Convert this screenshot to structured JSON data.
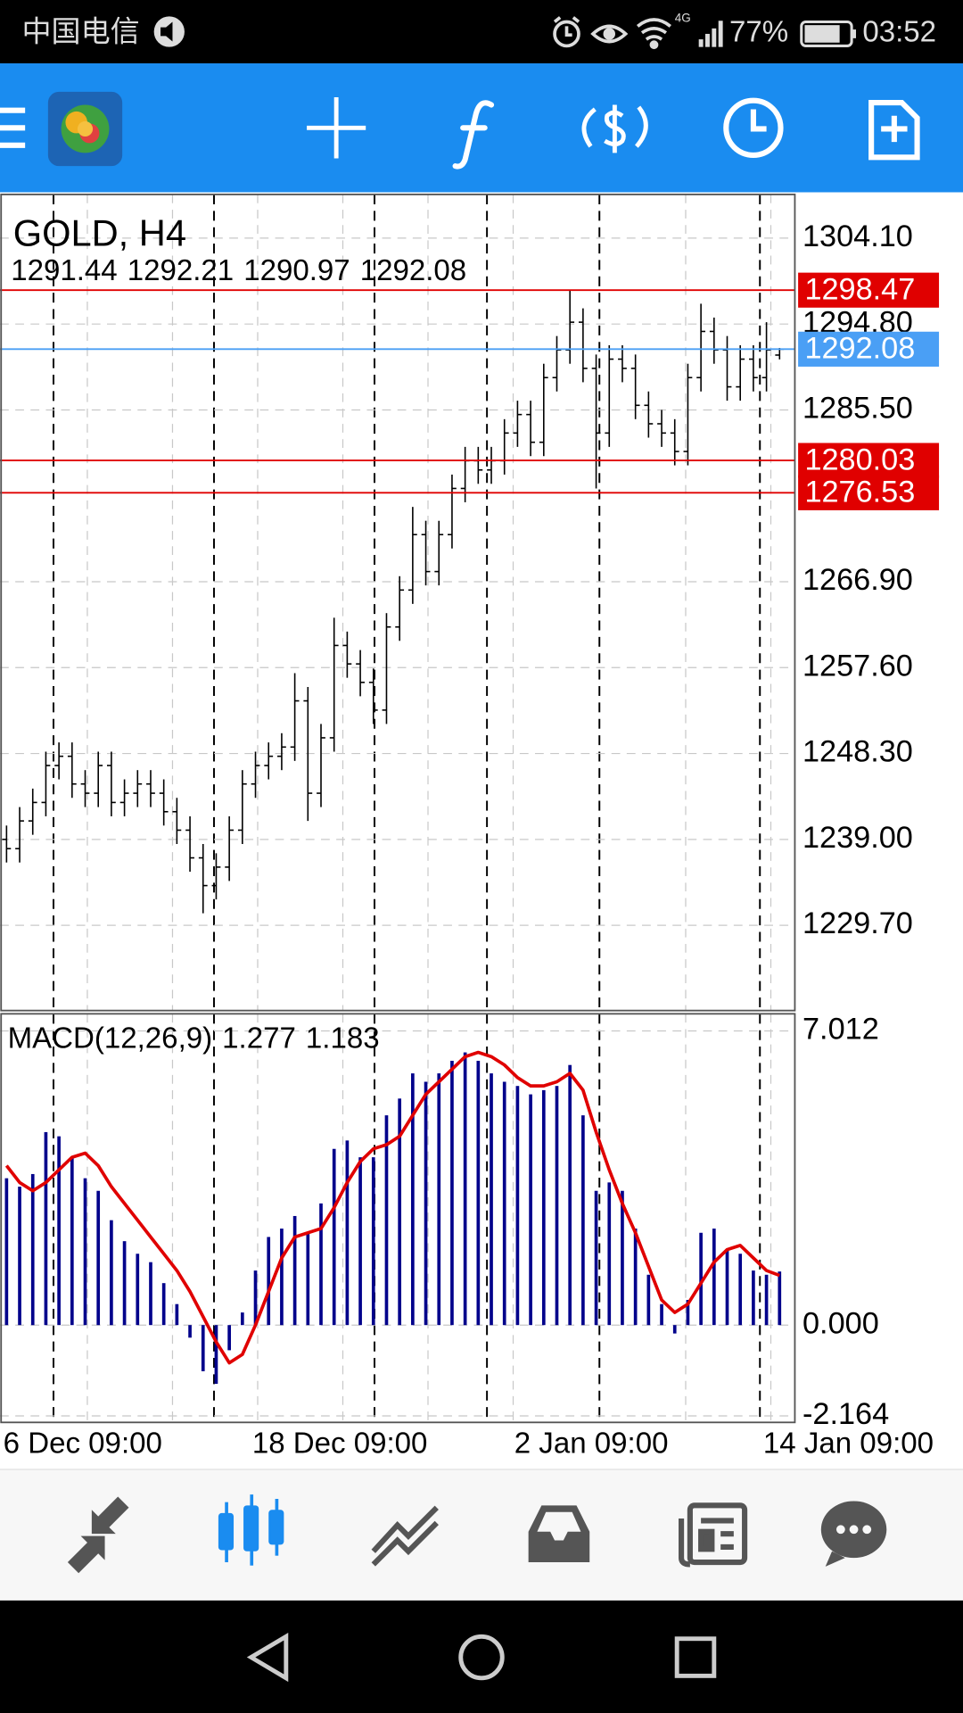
{
  "status_bar": {
    "carrier": "中国电信",
    "network": "4G",
    "battery": "77%",
    "time": "03:52"
  },
  "chart_data": [
    {
      "type": "ohlc",
      "title": "GOLD, H4",
      "color": "#000000",
      "grid": true,
      "categories": [
        "6 Dec 09:00",
        null,
        null,
        null,
        null,
        null,
        null,
        null,
        null,
        null,
        null,
        null,
        null,
        null,
        null,
        null,
        null,
        null,
        null,
        "18 Dec 09:00",
        null,
        null,
        null,
        null,
        null,
        null,
        null,
        null,
        null,
        null,
        null,
        null,
        null,
        null,
        null,
        null,
        null,
        null,
        null,
        "2 Jan 09:00",
        null,
        null,
        null,
        null,
        null,
        null,
        null,
        null,
        null,
        null,
        null,
        null,
        null,
        null,
        null,
        null,
        null,
        null,
        "14 Jan 09:00",
        null
      ],
      "open": [
        1239,
        1238,
        1241,
        1243,
        1247,
        1248,
        1245,
        1244,
        1247,
        1243,
        1244,
        1245,
        1244,
        1242,
        1240,
        1237,
        1234,
        1236,
        1240,
        1245,
        1247,
        1248,
        1249,
        1254,
        1244,
        1250,
        1260,
        1258,
        1256,
        1253,
        1262,
        1266,
        1272,
        1268,
        1272,
        1277,
        1280,
        1279,
        1280,
        1283,
        1285,
        1282,
        1289,
        1292,
        1295,
        1290,
        1283,
        1291,
        1290,
        1286,
        1284,
        1283,
        1281,
        1289,
        1294,
        1292,
        1288,
        1291,
        1289,
        1291.44
      ],
      "high": [
        1240.5,
        1242.5,
        1244.5,
        1248.5,
        1249.5,
        1249.5,
        1246.5,
        1248.5,
        1248.5,
        1245.5,
        1246.5,
        1246.5,
        1245.5,
        1243.5,
        1241.5,
        1238.5,
        1237.5,
        1241.5,
        1246.5,
        1248.5,
        1249.5,
        1250.5,
        1257,
        1255.5,
        1251.5,
        1263,
        1261.5,
        1259.5,
        1257.5,
        1263.5,
        1267.5,
        1275,
        1273.5,
        1273.5,
        1278.5,
        1281.5,
        1281.5,
        1281.5,
        1284.5,
        1286.5,
        1286.5,
        1290.5,
        1293.5,
        1298.5,
        1296.5,
        1291.5,
        1292.5,
        1292.5,
        1291.5,
        1287.5,
        1285.5,
        1284.5,
        1290.5,
        1297,
        1295.5,
        1293.5,
        1292.5,
        1292.5,
        1295,
        1292.21
      ],
      "low": [
        1236.5,
        1236.5,
        1239.5,
        1241.5,
        1245.5,
        1243.5,
        1242.5,
        1242.5,
        1241.5,
        1241.5,
        1242.5,
        1242.5,
        1240.5,
        1238.5,
        1235.5,
        1231,
        1232.5,
        1234.5,
        1238.5,
        1243.5,
        1245.5,
        1246.5,
        1247.5,
        1241,
        1242.5,
        1248.5,
        1256.5,
        1254.5,
        1251.5,
        1251.5,
        1260.5,
        1264.5,
        1266.5,
        1266.5,
        1270.5,
        1275.5,
        1277.5,
        1277.5,
        1278.5,
        1281.5,
        1280.5,
        1280.5,
        1287.5,
        1290.5,
        1288.5,
        1277,
        1281.5,
        1288.5,
        1284.5,
        1282.5,
        1281.5,
        1279.5,
        1279.5,
        1287.5,
        1290.5,
        1286.5,
        1286.5,
        1287.5,
        1287.5,
        1290.97
      ],
      "close": [
        1238,
        1241,
        1243,
        1247,
        1248,
        1245,
        1244,
        1247,
        1243,
        1244,
        1245,
        1244,
        1242,
        1240,
        1237,
        1234,
        1236,
        1240,
        1245,
        1247,
        1248,
        1249,
        1254,
        1244,
        1250,
        1260,
        1258,
        1256,
        1253,
        1262,
        1266,
        1272,
        1268,
        1272,
        1277,
        1280,
        1279,
        1280,
        1283,
        1285,
        1282,
        1289,
        1292,
        1295,
        1290,
        1283,
        1291,
        1290,
        1286,
        1284,
        1283,
        1281,
        1289,
        1294,
        1292,
        1288,
        1291,
        1289,
        1292,
        1292.08
      ],
      "ylim": [
        1220.47,
        1308.83
      ],
      "yticks": [
        {
          "value": 1304.1,
          "label": "1304.10"
        },
        {
          "value": 1294.8,
          "label": "1294.80"
        },
        {
          "value": 1285.5,
          "label": "1285.50"
        },
        {
          "value": 1266.9,
          "label": "1266.90"
        },
        {
          "value": 1257.6,
          "label": "1257.60"
        },
        {
          "value": 1248.3,
          "label": "1248.30"
        },
        {
          "value": 1239,
          "label": "1239.00"
        },
        {
          "value": 1229.7,
          "label": "1229.70"
        }
      ],
      "levels": [
        {
          "value": 1298.47,
          "color": "#e00000"
        },
        {
          "value": 1292.08,
          "color": "#4a9ff5"
        },
        {
          "value": 1280.03,
          "color": "#e00000"
        },
        {
          "value": 1276.53,
          "color": "#e00000"
        }
      ]
    },
    {
      "type": "macd",
      "title": "MACD(12,26,9)",
      "color": "#00008b",
      "signal_color": "#e00000",
      "values": [
        3.5,
        3.3,
        3.6,
        4.6,
        4.5,
        4.0,
        3.5,
        3.2,
        2.5,
        2.0,
        1.7,
        1.5,
        1.0,
        0.5,
        -0.3,
        -1.1,
        -1.4,
        -0.6,
        0.3,
        1.3,
        2.1,
        2.3,
        2.6,
        2.2,
        2.9,
        4.2,
        4.4,
        4.0,
        4.0,
        5.0,
        5.4,
        6.0,
        5.8,
        6.0,
        6.3,
        6.5,
        6.3,
        6.0,
        5.8,
        5.7,
        5.5,
        5.6,
        5.7,
        6.2,
        5.0,
        3.2,
        3.4,
        3.2,
        2.3,
        1.2,
        0.5,
        -0.2,
        0.6,
        2.2,
        2.3,
        1.8,
        1.7,
        1.3,
        1.2,
        1.277
      ],
      "signal": [
        3.8,
        3.4,
        3.2,
        3.4,
        3.7,
        4.0,
        4.1,
        3.8,
        3.3,
        2.9,
        2.5,
        2.1,
        1.7,
        1.3,
        0.8,
        0.2,
        -0.4,
        -0.9,
        -0.7,
        0,
        0.8,
        1.6,
        2.1,
        2.2,
        2.3,
        2.8,
        3.4,
        3.9,
        4.2,
        4.3,
        4.5,
        5.0,
        5.5,
        5.8,
        6.1,
        6.4,
        6.5,
        6.4,
        6.2,
        5.9,
        5.7,
        5.7,
        5.8,
        6.0,
        5.6,
        4.6,
        3.7,
        2.9,
        2.2,
        1.4,
        0.6,
        0.3,
        0.5,
        1.0,
        1.5,
        1.8,
        1.9,
        1.6,
        1.3,
        1.183
      ],
      "ylim": [
        -2.32,
        7.42
      ],
      "yticks": [
        {
          "value": 7.012,
          "label": "7.012"
        },
        {
          "value": 0,
          "label": "0.000"
        },
        {
          "value": -2.164,
          "label": "-2.164"
        }
      ]
    }
  ]
}
